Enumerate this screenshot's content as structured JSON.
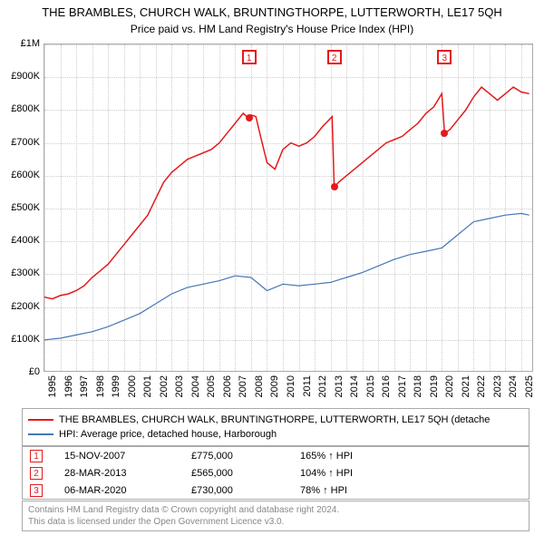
{
  "title": "THE BRAMBLES, CHURCH WALK, BRUNTINGTHORPE, LUTTERWORTH, LE17 5QH",
  "subtitle": "Price paid vs. HM Land Registry's House Price Index (HPI)",
  "chart": {
    "type": "line",
    "background_color": "#ffffff",
    "grid_color": "#cccccc",
    "axis_color": "#aaaaaa",
    "ylim": [
      0,
      1000000
    ],
    "ytick_step": 100000,
    "ytick_labels": [
      "£0",
      "£100K",
      "£200K",
      "£300K",
      "£400K",
      "£500K",
      "£600K",
      "£700K",
      "£800K",
      "£900K",
      "£1M"
    ],
    "xlim": [
      1995,
      2025.8
    ],
    "xticks": [
      1995,
      1996,
      1997,
      1998,
      1999,
      2000,
      2001,
      2002,
      2003,
      2004,
      2005,
      2006,
      2007,
      2008,
      2009,
      2010,
      2011,
      2012,
      2013,
      2014,
      2015,
      2016,
      2017,
      2018,
      2019,
      2020,
      2021,
      2022,
      2023,
      2024,
      2025
    ],
    "title_fontsize": 13,
    "label_fontsize": 11,
    "series": [
      {
        "name": "property",
        "color": "#e31a1c",
        "line_width": 1.5,
        "data": [
          [
            1995.0,
            230000
          ],
          [
            1995.5,
            225000
          ],
          [
            1996.0,
            235000
          ],
          [
            1996.5,
            240000
          ],
          [
            1997.0,
            250000
          ],
          [
            1997.5,
            265000
          ],
          [
            1998.0,
            290000
          ],
          [
            1998.5,
            310000
          ],
          [
            1999.0,
            330000
          ],
          [
            1999.5,
            360000
          ],
          [
            2000.0,
            390000
          ],
          [
            2000.5,
            420000
          ],
          [
            2001.0,
            450000
          ],
          [
            2001.5,
            480000
          ],
          [
            2002.0,
            530000
          ],
          [
            2002.5,
            580000
          ],
          [
            2003.0,
            610000
          ],
          [
            2003.5,
            630000
          ],
          [
            2004.0,
            650000
          ],
          [
            2004.5,
            660000
          ],
          [
            2005.0,
            670000
          ],
          [
            2005.5,
            680000
          ],
          [
            2006.0,
            700000
          ],
          [
            2006.5,
            730000
          ],
          [
            2007.0,
            760000
          ],
          [
            2007.5,
            790000
          ],
          [
            2007.87,
            775000
          ],
          [
            2008.0,
            785000
          ],
          [
            2008.3,
            780000
          ],
          [
            2008.6,
            720000
          ],
          [
            2009.0,
            640000
          ],
          [
            2009.5,
            620000
          ],
          [
            2010.0,
            680000
          ],
          [
            2010.5,
            700000
          ],
          [
            2011.0,
            690000
          ],
          [
            2011.5,
            700000
          ],
          [
            2012.0,
            720000
          ],
          [
            2012.5,
            750000
          ],
          [
            2012.9,
            770000
          ],
          [
            2013.1,
            780000
          ],
          [
            2013.23,
            565000
          ],
          [
            2013.24,
            565000
          ],
          [
            2013.5,
            580000
          ],
          [
            2014.0,
            600000
          ],
          [
            2014.5,
            620000
          ],
          [
            2015.0,
            640000
          ],
          [
            2015.5,
            660000
          ],
          [
            2016.0,
            680000
          ],
          [
            2016.5,
            700000
          ],
          [
            2017.0,
            710000
          ],
          [
            2017.5,
            720000
          ],
          [
            2018.0,
            740000
          ],
          [
            2018.5,
            760000
          ],
          [
            2019.0,
            790000
          ],
          [
            2019.5,
            810000
          ],
          [
            2020.0,
            850000
          ],
          [
            2020.17,
            730000
          ],
          [
            2020.18,
            730000
          ],
          [
            2020.5,
            740000
          ],
          [
            2021.0,
            770000
          ],
          [
            2021.5,
            800000
          ],
          [
            2022.0,
            840000
          ],
          [
            2022.5,
            870000
          ],
          [
            2023.0,
            850000
          ],
          [
            2023.5,
            830000
          ],
          [
            2024.0,
            850000
          ],
          [
            2024.5,
            870000
          ],
          [
            2025.0,
            855000
          ],
          [
            2025.5,
            850000
          ]
        ]
      },
      {
        "name": "hpi",
        "color": "#4577b5",
        "line_width": 1.2,
        "data": [
          [
            1995.0,
            100000
          ],
          [
            1996.0,
            105000
          ],
          [
            1997.0,
            115000
          ],
          [
            1998.0,
            125000
          ],
          [
            1999.0,
            140000
          ],
          [
            2000.0,
            160000
          ],
          [
            2001.0,
            180000
          ],
          [
            2002.0,
            210000
          ],
          [
            2003.0,
            240000
          ],
          [
            2004.0,
            260000
          ],
          [
            2005.0,
            270000
          ],
          [
            2006.0,
            280000
          ],
          [
            2007.0,
            295000
          ],
          [
            2008.0,
            290000
          ],
          [
            2009.0,
            250000
          ],
          [
            2010.0,
            270000
          ],
          [
            2011.0,
            265000
          ],
          [
            2012.0,
            270000
          ],
          [
            2013.0,
            275000
          ],
          [
            2014.0,
            290000
          ],
          [
            2015.0,
            305000
          ],
          [
            2016.0,
            325000
          ],
          [
            2017.0,
            345000
          ],
          [
            2018.0,
            360000
          ],
          [
            2019.0,
            370000
          ],
          [
            2020.0,
            380000
          ],
          [
            2021.0,
            420000
          ],
          [
            2022.0,
            460000
          ],
          [
            2023.0,
            470000
          ],
          [
            2024.0,
            480000
          ],
          [
            2025.0,
            485000
          ],
          [
            2025.5,
            480000
          ]
        ]
      }
    ],
    "markers": [
      {
        "idx": "1",
        "year": 2007.87,
        "value": 775000,
        "color": "#e31a1c"
      },
      {
        "idx": "2",
        "year": 2013.23,
        "value": 565000,
        "color": "#e31a1c"
      },
      {
        "idx": "3",
        "year": 2020.17,
        "value": 730000,
        "color": "#e31a1c"
      }
    ]
  },
  "legend": {
    "items": [
      {
        "color": "#e31a1c",
        "label": "THE BRAMBLES, CHURCH WALK, BRUNTINGTHORPE, LUTTERWORTH, LE17 5QH (detache"
      },
      {
        "color": "#4577b5",
        "label": "HPI: Average price, detached house, Harborough"
      }
    ]
  },
  "sales": [
    {
      "idx": "1",
      "color": "#e31a1c",
      "date": "15-NOV-2007",
      "price": "£775,000",
      "pct": "165% ↑ HPI"
    },
    {
      "idx": "2",
      "color": "#e31a1c",
      "date": "28-MAR-2013",
      "price": "£565,000",
      "pct": "104% ↑ HPI"
    },
    {
      "idx": "3",
      "color": "#e31a1c",
      "date": "06-MAR-2020",
      "price": "£730,000",
      "pct": "78% ↑ HPI"
    }
  ],
  "footer": {
    "line1": "Contains HM Land Registry data © Crown copyright and database right 2024.",
    "line2": "This data is licensed under the Open Government Licence v3.0."
  }
}
